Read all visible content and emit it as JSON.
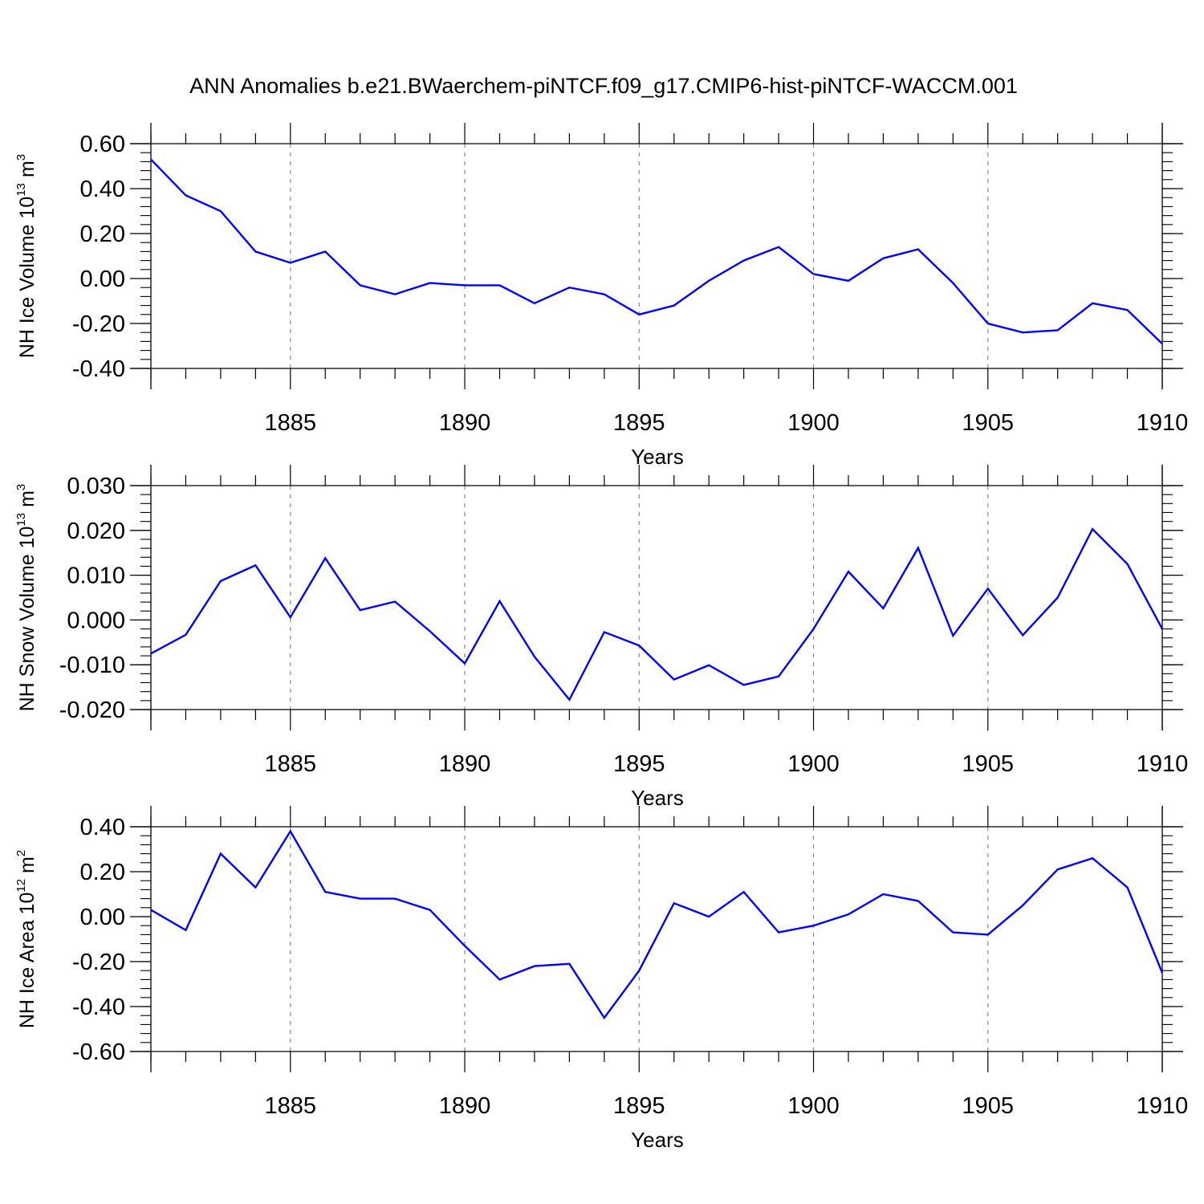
{
  "title": "ANN Anomalies b.e21.BWaerchem-piNTCF.f09_g17.CMIP6-hist-piNTCF-WACCM.001",
  "chart_data": [
    {
      "type": "line",
      "ylabel": {
        "base": "NH Ice Volume 10",
        "exp": "13",
        "unit": " m",
        "unit_exp": "3"
      },
      "xlabel": "Years",
      "x": [
        1881,
        1882,
        1883,
        1884,
        1885,
        1886,
        1887,
        1888,
        1889,
        1890,
        1891,
        1892,
        1893,
        1894,
        1895,
        1896,
        1897,
        1898,
        1899,
        1900,
        1901,
        1902,
        1903,
        1904,
        1905,
        1906,
        1907,
        1908,
        1909,
        1910
      ],
      "values": [
        0.53,
        0.37,
        0.3,
        0.12,
        0.07,
        0.12,
        -0.03,
        -0.07,
        -0.02,
        -0.03,
        -0.03,
        -0.11,
        -0.04,
        -0.07,
        -0.16,
        -0.12,
        -0.01,
        0.08,
        0.14,
        0.02,
        -0.01,
        0.09,
        0.13,
        -0.02,
        -0.2,
        -0.24,
        -0.23,
        -0.11,
        -0.14,
        -0.29
      ],
      "xlim": [
        1881,
        1910
      ],
      "ylim": [
        -0.4,
        0.6
      ],
      "yticks": [
        -0.4,
        -0.2,
        0.0,
        0.2,
        0.4,
        0.6
      ],
      "ytick_labels": [
        "-0.40",
        "-0.20",
        "0.00",
        "0.20",
        "0.40",
        "0.60"
      ],
      "yminor_step": 0.04,
      "xticks": [
        1885,
        1890,
        1895,
        1900,
        1905,
        1910
      ],
      "xtick_labels": [
        "1885",
        "1890",
        "1895",
        "1900",
        "1905",
        "1910"
      ],
      "grid": "vertical dashed at major years",
      "color": "#0000ff"
    },
    {
      "type": "line",
      "ylabel": {
        "base": "NH Snow Volume 10",
        "exp": "13",
        "unit": " m",
        "unit_exp": "3"
      },
      "xlabel": "Years",
      "x": [
        1881,
        1882,
        1883,
        1884,
        1885,
        1886,
        1887,
        1888,
        1889,
        1890,
        1891,
        1892,
        1893,
        1894,
        1895,
        1896,
        1897,
        1898,
        1899,
        1900,
        1901,
        1902,
        1903,
        1904,
        1905,
        1906,
        1907,
        1908,
        1909,
        1910
      ],
      "values": [
        -0.0075,
        -0.0033,
        0.0087,
        0.0122,
        0.0006,
        0.0138,
        0.0022,
        0.0041,
        -0.0025,
        -0.0097,
        0.0042,
        -0.0082,
        -0.0178,
        -0.0027,
        -0.0057,
        -0.0133,
        -0.0101,
        -0.0145,
        -0.0126,
        -0.002,
        0.0108,
        0.0026,
        0.0161,
        -0.0035,
        0.007,
        -0.0034,
        0.005,
        0.0203,
        0.0125,
        -0.002
      ],
      "xlim": [
        1881,
        1910
      ],
      "ylim": [
        -0.02,
        0.03
      ],
      "yticks": [
        -0.02,
        -0.01,
        0.0,
        0.01,
        0.02,
        0.03
      ],
      "ytick_labels": [
        "-0.020",
        "-0.010",
        "0.000",
        "0.010",
        "0.020",
        "0.030"
      ],
      "yminor_step": 0.002,
      "xticks": [
        1885,
        1890,
        1895,
        1900,
        1905,
        1910
      ],
      "xtick_labels": [
        "1885",
        "1890",
        "1895",
        "1900",
        "1905",
        "1910"
      ],
      "grid": "vertical dashed at major years",
      "color": "#0000ff"
    },
    {
      "type": "line",
      "ylabel": {
        "base": "NH Ice Area 10",
        "exp": "12",
        "unit": " m",
        "unit_exp": "2"
      },
      "xlabel": "Years",
      "x": [
        1881,
        1882,
        1883,
        1884,
        1885,
        1886,
        1887,
        1888,
        1889,
        1890,
        1891,
        1892,
        1893,
        1894,
        1895,
        1896,
        1897,
        1898,
        1899,
        1900,
        1901,
        1902,
        1903,
        1904,
        1905,
        1906,
        1907,
        1908,
        1909,
        1910
      ],
      "values": [
        0.03,
        -0.06,
        0.28,
        0.13,
        0.38,
        0.11,
        0.08,
        0.08,
        0.03,
        -0.13,
        -0.28,
        -0.22,
        -0.21,
        -0.45,
        -0.24,
        0.06,
        0.0,
        0.11,
        -0.07,
        -0.04,
        0.01,
        0.1,
        0.07,
        -0.07,
        -0.08,
        0.05,
        0.21,
        0.26,
        0.13,
        -0.25
      ],
      "xlim": [
        1881,
        1910
      ],
      "ylim": [
        -0.6,
        0.4
      ],
      "yticks": [
        -0.6,
        -0.4,
        -0.2,
        0.0,
        0.2,
        0.4
      ],
      "ytick_labels": [
        "-0.60",
        "-0.40",
        "-0.20",
        "0.00",
        "0.20",
        "0.40"
      ],
      "yminor_step": 0.04,
      "xticks": [
        1885,
        1890,
        1895,
        1900,
        1905,
        1910
      ],
      "xtick_labels": [
        "1885",
        "1890",
        "1895",
        "1900",
        "1905",
        "1910"
      ],
      "grid": "vertical dashed at major years",
      "color": "#0000ff"
    }
  ]
}
